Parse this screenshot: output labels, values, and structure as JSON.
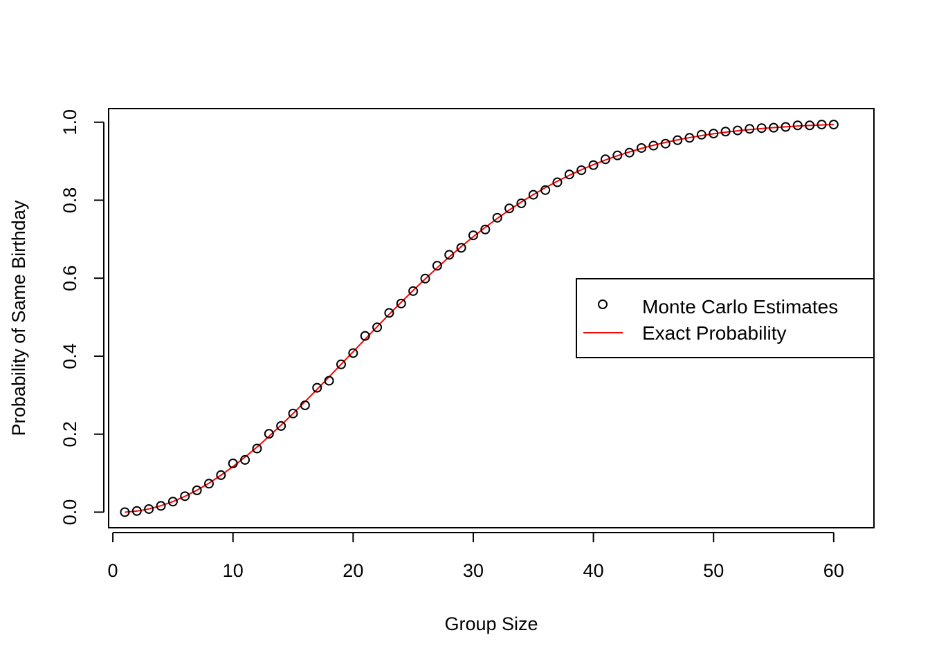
{
  "chart_data": {
    "type": "scatter",
    "title": "",
    "xlabel": "Group Size",
    "ylabel": "Probability of Same Birthday",
    "xlim": [
      -0.35,
      63.35
    ],
    "ylim": [
      -0.04,
      1.035
    ],
    "x_ticks": [
      0,
      10,
      20,
      30,
      40,
      50,
      60
    ],
    "x_tick_labels": [
      "0",
      "10",
      "20",
      "30",
      "40",
      "50",
      "60"
    ],
    "y_ticks": [
      0.0,
      0.2,
      0.4,
      0.6,
      0.8,
      1.0
    ],
    "y_tick_labels": [
      "0.0",
      "0.2",
      "0.4",
      "0.6",
      "0.8",
      "1.0"
    ],
    "grid": false,
    "legend_position": "right",
    "series": [
      {
        "name": "Monte Carlo Estimates",
        "kind": "points",
        "marker": "open-circle",
        "color": "#000000",
        "x": [
          1,
          2,
          3,
          4,
          5,
          6,
          7,
          8,
          9,
          10,
          11,
          12,
          13,
          14,
          15,
          16,
          17,
          18,
          19,
          20,
          21,
          22,
          23,
          24,
          25,
          26,
          27,
          28,
          29,
          30,
          31,
          32,
          33,
          34,
          35,
          36,
          37,
          38,
          39,
          40,
          41,
          42,
          43,
          44,
          45,
          46,
          47,
          48,
          49,
          50,
          51,
          52,
          53,
          54,
          55,
          56,
          57,
          58,
          59,
          60
        ],
        "values": [
          0.0,
          0.003,
          0.008,
          0.016,
          0.027,
          0.041,
          0.056,
          0.073,
          0.095,
          0.125,
          0.134,
          0.163,
          0.201,
          0.221,
          0.253,
          0.274,
          0.319,
          0.337,
          0.379,
          0.408,
          0.452,
          0.474,
          0.511,
          0.535,
          0.567,
          0.599,
          0.632,
          0.66,
          0.678,
          0.71,
          0.725,
          0.755,
          0.779,
          0.792,
          0.814,
          0.826,
          0.846,
          0.866,
          0.877,
          0.89,
          0.905,
          0.915,
          0.922,
          0.934,
          0.94,
          0.945,
          0.954,
          0.96,
          0.968,
          0.971,
          0.976,
          0.979,
          0.983,
          0.985,
          0.986,
          0.988,
          0.992,
          0.992,
          0.994,
          0.994
        ]
      },
      {
        "name": "Exact Probability",
        "kind": "line",
        "color": "#ff0000",
        "x": [
          1,
          2,
          3,
          4,
          5,
          6,
          7,
          8,
          9,
          10,
          11,
          12,
          13,
          14,
          15,
          16,
          17,
          18,
          19,
          20,
          21,
          22,
          23,
          24,
          25,
          26,
          27,
          28,
          29,
          30,
          31,
          32,
          33,
          34,
          35,
          36,
          37,
          38,
          39,
          40,
          41,
          42,
          43,
          44,
          45,
          46,
          47,
          48,
          49,
          50,
          51,
          52,
          53,
          54,
          55,
          56,
          57,
          58,
          59,
          60
        ],
        "values": [
          0.0,
          0.0027,
          0.0082,
          0.0164,
          0.0271,
          0.0405,
          0.0562,
          0.0743,
          0.0946,
          0.1169,
          0.1411,
          0.167,
          0.1944,
          0.2231,
          0.2529,
          0.2836,
          0.315,
          0.3469,
          0.3791,
          0.4114,
          0.4437,
          0.4757,
          0.5073,
          0.5383,
          0.5687,
          0.5982,
          0.6269,
          0.6545,
          0.681,
          0.7063,
          0.7305,
          0.7533,
          0.775,
          0.7953,
          0.8144,
          0.8322,
          0.8487,
          0.8641,
          0.8782,
          0.8912,
          0.9032,
          0.914,
          0.9239,
          0.9329,
          0.941,
          0.9483,
          0.9548,
          0.9606,
          0.9658,
          0.9704,
          0.9744,
          0.978,
          0.9811,
          0.9839,
          0.9863,
          0.9883,
          0.9901,
          0.9917,
          0.993,
          0.9941
        ]
      }
    ]
  }
}
